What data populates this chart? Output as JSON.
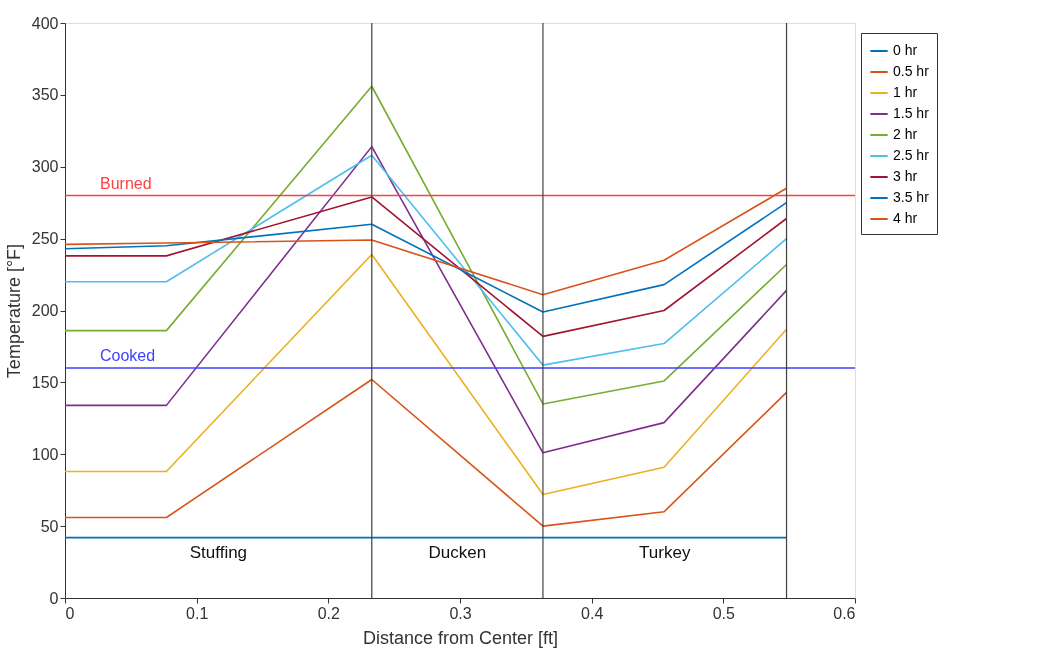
{
  "chart_data": {
    "type": "line",
    "xlabel": "Distance from Center [ft]",
    "ylabel": "Temperature [°F]",
    "x": [
      0,
      0.077,
      0.233,
      0.363,
      0.455,
      0.548
    ],
    "series": [
      {
        "name": "0 hr",
        "color": "#0072bd",
        "values": [
          42,
          42,
          42,
          42,
          42,
          42
        ]
      },
      {
        "name": "0.5 hr",
        "color": "#d95319",
        "values": [
          56,
          56,
          152,
          50,
          60,
          143
        ]
      },
      {
        "name": "1 hr",
        "color": "#edb120",
        "values": [
          88,
          88,
          239,
          72,
          91,
          187
        ]
      },
      {
        "name": "1.5 hr",
        "color": "#7e2f8e",
        "values": [
          134,
          134,
          314,
          101,
          122,
          214
        ]
      },
      {
        "name": "2 hr",
        "color": "#77ac30",
        "values": [
          186,
          186,
          356,
          135,
          151,
          232
        ]
      },
      {
        "name": "2.5 hr",
        "color": "#4dbeee",
        "values": [
          220,
          220,
          308,
          162,
          177,
          250
        ]
      },
      {
        "name": "3 hr",
        "color": "#a2142f",
        "values": [
          238,
          238,
          279,
          182,
          200,
          264
        ]
      },
      {
        "name": "3.5 hr",
        "color": "#0072bd",
        "values": [
          243,
          245,
          260,
          199,
          218,
          275
        ]
      },
      {
        "name": "4 hr",
        "color": "#d95319",
        "values": [
          246,
          247,
          249,
          211,
          235,
          285
        ]
      }
    ],
    "xlim": [
      0,
      0.6
    ],
    "xticks": [
      0,
      0.1,
      0.2,
      0.3,
      0.4,
      0.5,
      0.6
    ],
    "ylim": [
      0,
      400
    ],
    "yticks": [
      0,
      50,
      100,
      150,
      200,
      250,
      300,
      350,
      400
    ],
    "ref_lines": [
      {
        "axis": "y",
        "value": 280,
        "label": "Burned",
        "color": "#ff4040"
      },
      {
        "axis": "y",
        "value": 160,
        "label": "Cooked",
        "color": "#4040ff"
      },
      {
        "axis": "x",
        "value": 0.233,
        "color": "#404040"
      },
      {
        "axis": "x",
        "value": 0.363,
        "color": "#404040"
      },
      {
        "axis": "x",
        "value": 0.548,
        "color": "#404040"
      }
    ],
    "annotations": [
      "Stuffing",
      "Ducken",
      "Turkey"
    ],
    "grid": false,
    "legend": "top right",
    "marker": "none",
    "line_style": "solid"
  }
}
